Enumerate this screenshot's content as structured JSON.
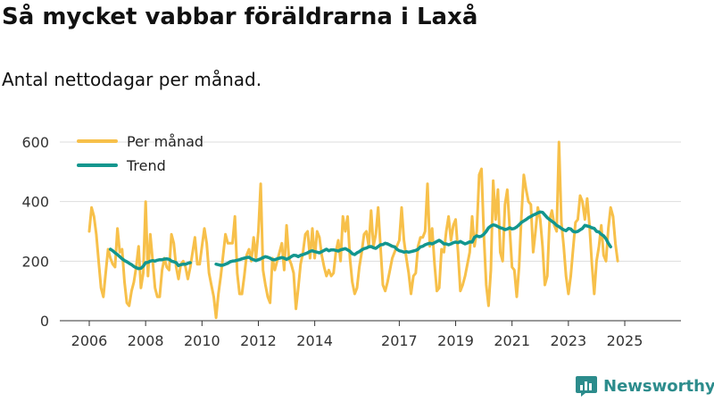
{
  "chart_data": {
    "type": "line",
    "title": "Så mycket vabbar föräldrarna i Laxå",
    "subtitle": "Antal nettodagar per månad.",
    "xlabel": "",
    "ylabel": "",
    "ylim": [
      0,
      650
    ],
    "yticks": [
      0,
      200,
      400,
      600
    ],
    "x_tick_labels": [
      {
        "x": 2006,
        "label": "2006"
      },
      {
        "x": 2008,
        "label": "2008"
      },
      {
        "x": 2010,
        "label": "2010"
      },
      {
        "x": 2012,
        "label": "2012"
      },
      {
        "x": 2014,
        "label": "2014"
      },
      {
        "x": 2017,
        "label": "2017"
      },
      {
        "x": 2019,
        "label": "2019"
      },
      {
        "x": 2021,
        "label": "2021"
      },
      {
        "x": 2023,
        "label": "2023"
      },
      {
        "x": 2025,
        "label": "2025"
      }
    ],
    "legend_position": "top-left",
    "series": [
      {
        "name": "Per månad",
        "color": "#f7c04a",
        "x_start": 2006.0,
        "step": 0.0833333,
        "values": [
          300,
          380,
          350,
          290,
          200,
          110,
          80,
          160,
          240,
          210,
          190,
          180,
          310,
          230,
          240,
          130,
          60,
          50,
          100,
          130,
          180,
          250,
          110,
          160,
          400,
          150,
          290,
          200,
          110,
          80,
          80,
          170,
          210,
          180,
          170,
          290,
          260,
          180,
          140,
          190,
          200,
          180,
          140,
          180,
          230,
          280,
          190,
          190,
          250,
          310,
          260,
          160,
          120,
          80,
          10,
          90,
          150,
          220,
          290,
          260,
          260,
          260,
          350,
          160,
          90,
          90,
          150,
          220,
          240,
          200,
          280,
          210,
          300,
          460,
          170,
          120,
          80,
          60,
          210,
          170,
          200,
          230,
          260,
          170,
          320,
          210,
          190,
          160,
          40,
          110,
          190,
          230,
          290,
          300,
          210,
          310,
          210,
          300,
          280,
          220,
          180,
          150,
          170,
          150,
          160,
          230,
          270,
          200,
          350,
          300,
          350,
          210,
          130,
          90,
          110,
          180,
          230,
          290,
          300,
          250,
          370,
          250,
          290,
          380,
          250,
          120,
          100,
          130,
          170,
          210,
          230,
          250,
          270,
          380,
          270,
          210,
          160,
          90,
          150,
          160,
          250,
          280,
          280,
          300,
          460,
          250,
          310,
          190,
          100,
          110,
          240,
          230,
          300,
          350,
          270,
          320,
          340,
          230,
          100,
          120,
          150,
          190,
          230,
          350,
          250,
          300,
          490,
          510,
          290,
          120,
          50,
          170,
          470,
          340,
          440,
          230,
          200,
          390,
          440,
          310,
          180,
          170,
          80,
          180,
          350,
          490,
          440,
          400,
          390,
          230,
          300,
          380,
          340,
          250,
          120,
          150,
          340,
          370,
          320,
          300,
          600,
          330,
          250,
          150,
          90,
          150,
          240,
          330,
          340,
          420,
          400,
          340,
          410,
          320,
          190,
          90,
          200,
          250,
          320,
          220,
          200,
          310,
          380,
          350,
          260,
          200
        ]
      },
      {
        "name": "Trend",
        "color": "#13968e",
        "segments": [
          {
            "x_start": 2006.75,
            "step": 0.0833333,
            "values": [
              240,
              235,
              228,
              222,
              215,
              208,
              202,
              198,
              193,
              188,
              182,
              178,
              175,
              176,
              183,
              195,
              196,
              200,
              202,
              200,
              203,
              205,
              205,
              207,
              208,
              206,
              200,
              198,
              195,
              185,
              188,
              190,
              190,
              193,
              195
            ]
          },
          {
            "x_start": 2010.5,
            "step": 0.0833333,
            "values": [
              190,
              188,
              186,
              187,
              190,
              193,
              198,
              200,
              201,
              203,
              205,
              208,
              210,
              212,
              213,
              208,
              205,
              202,
              205,
              208,
              212,
              215,
              213,
              210,
              205,
              205,
              208,
              210,
              212,
              210,
              206,
              210,
              215,
              220,
              219,
              215,
              220,
              222,
              225,
              228,
              233,
              235,
              232,
              230,
              228,
              232,
              236,
              240,
              235,
              238,
              238,
              236,
              234,
              238,
              240,
              242,
              238,
              233,
              225,
              222,
              228,
              232,
              238,
              242,
              244,
              248,
              249,
              245,
              243,
              249,
              255,
              256,
              260,
              258,
              254,
              250,
              248,
              240,
              235,
              233,
              230,
              232,
              230,
              232,
              234,
              236,
              240,
              248,
              250,
              255,
              258,
              260,
              258,
              262,
              266,
              270,
              265,
              258,
              258,
              255,
              258,
              262,
              264,
              262,
              266,
              262,
              258,
              261,
              265,
              264,
              280,
              285,
              282,
              284,
              290,
              300,
              312,
              318,
              322,
              320,
              316,
              312,
              310,
              306,
              308,
              312,
              308,
              310,
              315,
              322,
              330,
              335,
              340,
              346,
              350,
              355,
              358,
              362,
              365,
              364,
              355,
              346,
              340,
              334,
              328,
              320,
              316,
              310,
              305,
              302,
              310,
              308,
              300,
              298,
              300,
              305,
              310,
              320,
              318,
              316,
              312,
              310,
              300,
              298,
              290,
              285,
              275,
              260,
              248
            ]
          }
        ]
      }
    ]
  },
  "branding": {
    "logo_text": "Newsworthy",
    "logo_color": "#2c8c8c"
  }
}
